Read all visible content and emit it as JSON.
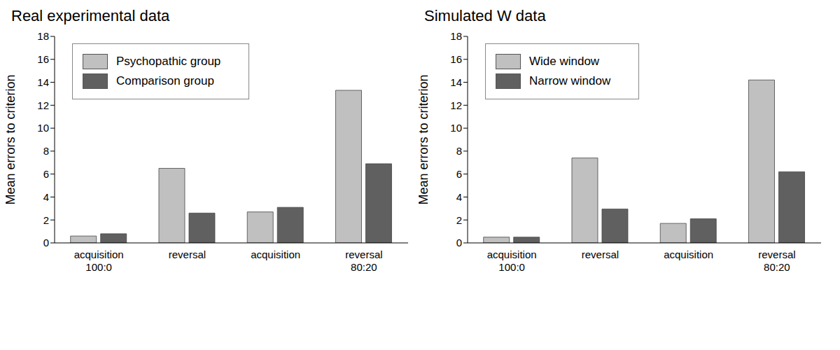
{
  "chart_data": [
    {
      "type": "bar",
      "title": "Real experimental data",
      "y_label": "Mean errors to criterion",
      "categories": [
        "acquisition\n100:0",
        "reversal",
        "acquisition",
        "reversal\n80:20"
      ],
      "series": [
        {
          "name": "Psychopathic group",
          "color": "#c0c0c0",
          "values": [
            0.6,
            6.5,
            2.7,
            13.3
          ]
        },
        {
          "name": "Comparison group",
          "color": "#606060",
          "values": [
            0.8,
            2.6,
            3.1,
            6.9
          ]
        }
      ],
      "ylim": [
        0,
        18
      ],
      "yticks": [
        0,
        2,
        4,
        6,
        8,
        10,
        12,
        14,
        16,
        18
      ],
      "legend": "upper left"
    },
    {
      "type": "bar",
      "title": "Simulated W data",
      "y_label": "Mean errors to criterion",
      "categories": [
        "acquisition\n100:0",
        "reversal",
        "acquisition",
        "reversal\n80:20"
      ],
      "series": [
        {
          "name": "Wide window",
          "color": "#c0c0c0",
          "values": [
            0.5,
            7.4,
            1.7,
            14.2
          ]
        },
        {
          "name": "Narrow window",
          "color": "#606060",
          "values": [
            0.5,
            2.95,
            2.1,
            6.2
          ]
        }
      ],
      "ylim": [
        0,
        18
      ],
      "yticks": [
        0,
        2,
        4,
        6,
        8,
        10,
        12,
        14,
        16,
        18
      ],
      "legend": "upper left"
    }
  ]
}
